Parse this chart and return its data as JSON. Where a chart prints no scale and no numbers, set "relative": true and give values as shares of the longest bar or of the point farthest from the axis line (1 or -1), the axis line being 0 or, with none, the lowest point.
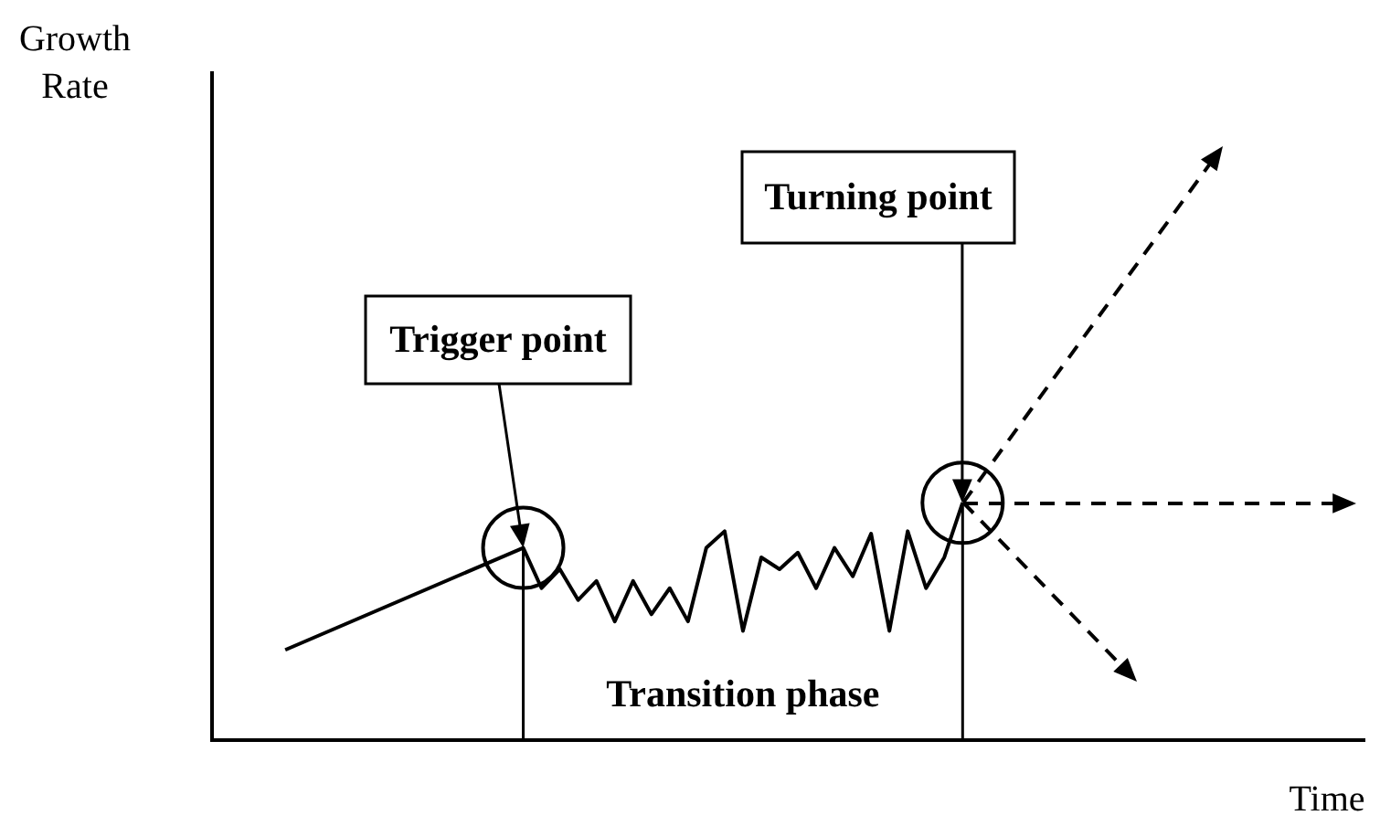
{
  "chart_data": {
    "type": "line",
    "relative": true,
    "xlabel": "Time",
    "categories": [
      null,
      null,
      null,
      null,
      null,
      null,
      null,
      null,
      null,
      null,
      null,
      null,
      null,
      null,
      null,
      null,
      null,
      null,
      null,
      null,
      null,
      null,
      null,
      null,
      null,
      null,
      null,
      null,
      null,
      null,
      null,
      null,
      null,
      null,
      null,
      null,
      null,
      null,
      null,
      null,
      null,
      null,
      null,
      null,
      null,
      null,
      null,
      null,
      null,
      null,
      null,
      null,
      null,
      null,
      null,
      null,
      null,
      null,
      null,
      null,
      null,
      null,
      null,
      null
    ],
    "series": [
      {
        "color": "#000000",
        "values": [
          null,
          null,
          null,
          null,
          0.38,
          null,
          null,
          null,
          null,
          null,
          null,
          null,
          null,
          null,
          null,
          null,
          null,
          0.81,
          0.64,
          0.72,
          0.59,
          0.67,
          0.5,
          0.67,
          0.53,
          0.64,
          0.5,
          0.81,
          0.88,
          0.46,
          0.77,
          0.72,
          0.79,
          0.64,
          0.81,
          0.69,
          0.87,
          0.46,
          0.88,
          0.64,
          0.77,
          1,
          null,
          null,
          null,
          null,
          null,
          null,
          null,
          null,
          null,
          null,
          null,
          null,
          null,
          null,
          null,
          null,
          null,
          null,
          null,
          null,
          null,
          null
        ]
      }
    ],
    "annotations": [
      "Trigger point",
      "Turning point",
      "Transition phase",
      "Growth Rate"
    ],
    "line_style": "solid",
    "marker": "none",
    "grid": false,
    "legend": false
  }
}
